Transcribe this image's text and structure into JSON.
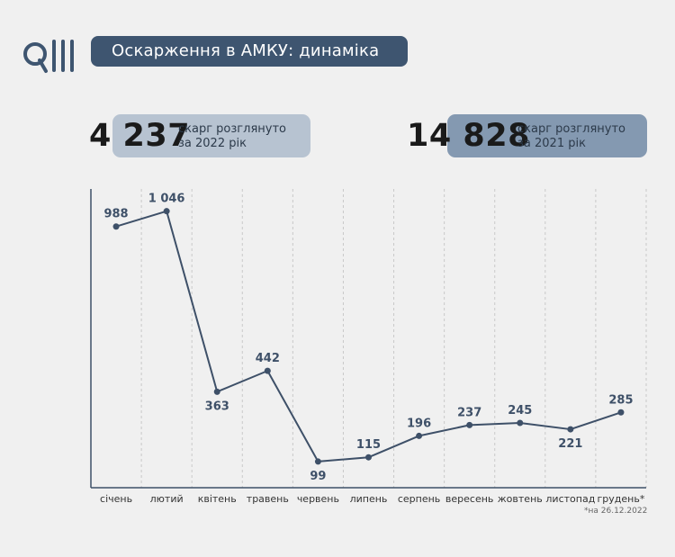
{
  "header": {
    "title": "Оскарження в АМКУ: динаміка"
  },
  "stats": [
    {
      "number": "4 237",
      "line1": "скарг розглянуто",
      "line2": "за 2022 рік"
    },
    {
      "number": "14 828",
      "line1": "скарг розглянуто",
      "line2": "за 2021 рік"
    }
  ],
  "chart_data": {
    "type": "line",
    "categories": [
      "січень",
      "лютий",
      "квітень",
      "травень",
      "червень",
      "липень",
      "серпень",
      "вересень",
      "жовтень",
      "листопад",
      "грудень*"
    ],
    "values": [
      988,
      1046,
      363,
      442,
      99,
      115,
      196,
      237,
      245,
      221,
      285
    ],
    "labels": [
      "988",
      "1 046",
      "363",
      "442",
      "99",
      "115",
      "196",
      "237",
      "245",
      "221",
      "285"
    ],
    "label_positions": [
      "above",
      "above",
      "below",
      "above",
      "below",
      "above",
      "above",
      "above",
      "above",
      "below",
      "above"
    ],
    "ylim": [
      0,
      1130
    ],
    "grid": "vertical dashed",
    "line_color": "#3e5068",
    "footnote": "*на 26.12.2022"
  },
  "colors": {
    "accent": "#3e5570",
    "pill_light": "#b7c3d1",
    "pill_dark": "#8499b1",
    "background": "#f0f0f0"
  }
}
